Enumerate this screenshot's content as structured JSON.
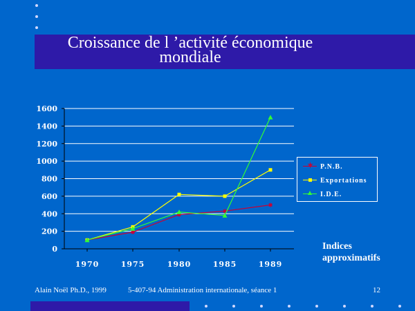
{
  "slide": {
    "title_line1": "Croissance de l ’activité économique",
    "title_line2": "mondiale",
    "note_line1": "Indices",
    "note_line2": "approximatifs",
    "footer_author": "Alain Noël Ph.D., 1999",
    "footer_course": "5-407-94 Administration internationale, séance 1",
    "footer_page": "12"
  },
  "colors": {
    "background": "#0066CC",
    "title_band": "#2E1AA8",
    "pnb": "#CC0033",
    "exportations": "#FFFF00",
    "ide": "#33FF33",
    "axis": "#000000",
    "grid": "#ffffff"
  },
  "chart_data": {
    "type": "line",
    "categories": [
      "1970",
      "1975",
      "1980",
      "1985",
      "1989"
    ],
    "ylim": [
      0,
      1600
    ],
    "yticks": [
      0,
      200,
      400,
      600,
      800,
      1000,
      1200,
      1400,
      1600
    ],
    "ytick_labels": [
      "0",
      "200",
      "400",
      "600",
      "800",
      "1000",
      "1200",
      "1400",
      "1600"
    ],
    "grid": true,
    "legend": "right",
    "series": [
      {
        "name": "P.N.B.",
        "values": [
          100,
          190,
          390,
          430,
          500
        ],
        "color": "#CC0033",
        "marker": "star"
      },
      {
        "name": "Exportations",
        "values": [
          100,
          250,
          620,
          600,
          900
        ],
        "color": "#FFFF00",
        "marker": "square"
      },
      {
        "name": "I.D.E.",
        "values": [
          100,
          230,
          420,
          380,
          1500
        ],
        "color": "#33FF33",
        "marker": "triangle"
      }
    ]
  }
}
